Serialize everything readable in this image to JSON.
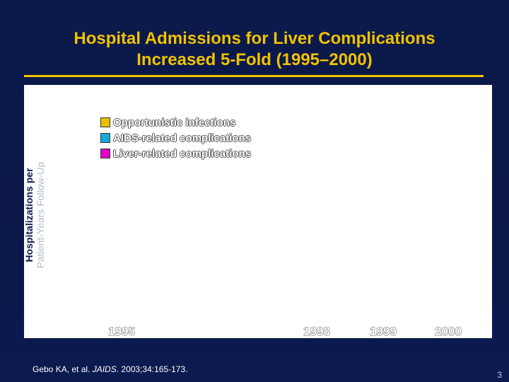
{
  "slide": {
    "title_line1": "Hospital Admissions for Liver Complications",
    "title_line2": "Increased 5-Fold (1995–2000)",
    "source_prefix": "Gebo KA, et al. ",
    "source_journal": "JAIDS",
    "source_suffix": ". 2003;34:165-173.",
    "page_number": "3"
  },
  "colors": {
    "title": "#f2c200",
    "background": "#0b1a4a",
    "opportunistic": "#e8c000",
    "aids_related": "#19a8d8",
    "liver_related": "#e000c8"
  },
  "chart_data": {
    "type": "bar",
    "ylabel_line1": "Hospitalizations per",
    "ylabel_line2": "Patient-Years Follow-Up",
    "categories": [
      "1995",
      "1998",
      "1999",
      "2000"
    ],
    "series": [
      {
        "name": "Opportunistic infections",
        "color": "#e8c000"
      },
      {
        "name": "AIDS-related complications",
        "color": "#19a8d8"
      },
      {
        "name": "Liver-related complications",
        "color": "#e000c8"
      }
    ],
    "legend_position": "top-left",
    "grid": false
  }
}
